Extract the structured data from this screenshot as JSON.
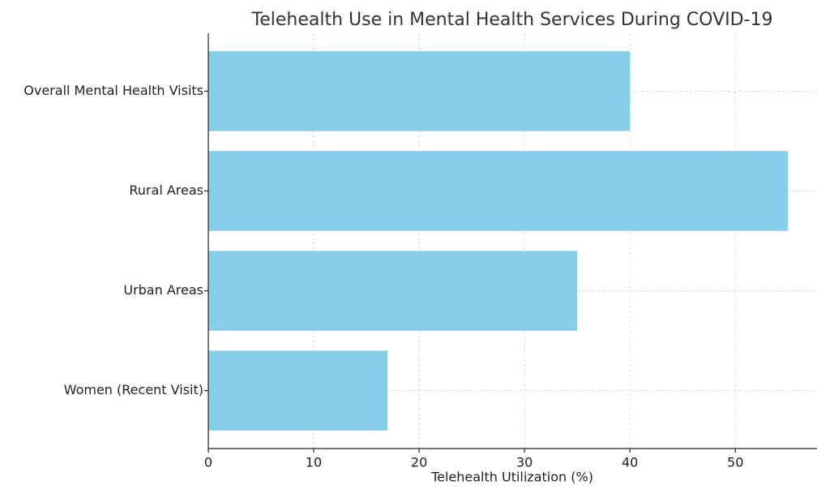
{
  "chart_data": {
    "type": "barh",
    "title": "Telehealth Use in Mental Health Services During COVID-19",
    "xlabel": "Telehealth Utilization (%)",
    "categories": [
      "Overall Mental Health Visits",
      "Rural Areas",
      "Urban Areas",
      "Women (Recent Visit)"
    ],
    "values": [
      40,
      55,
      35,
      17
    ],
    "color": "#87ceeb",
    "xlim": [
      0,
      57.75
    ],
    "xticks": [
      0,
      10,
      20,
      30,
      40,
      50
    ],
    "grid": true
  }
}
